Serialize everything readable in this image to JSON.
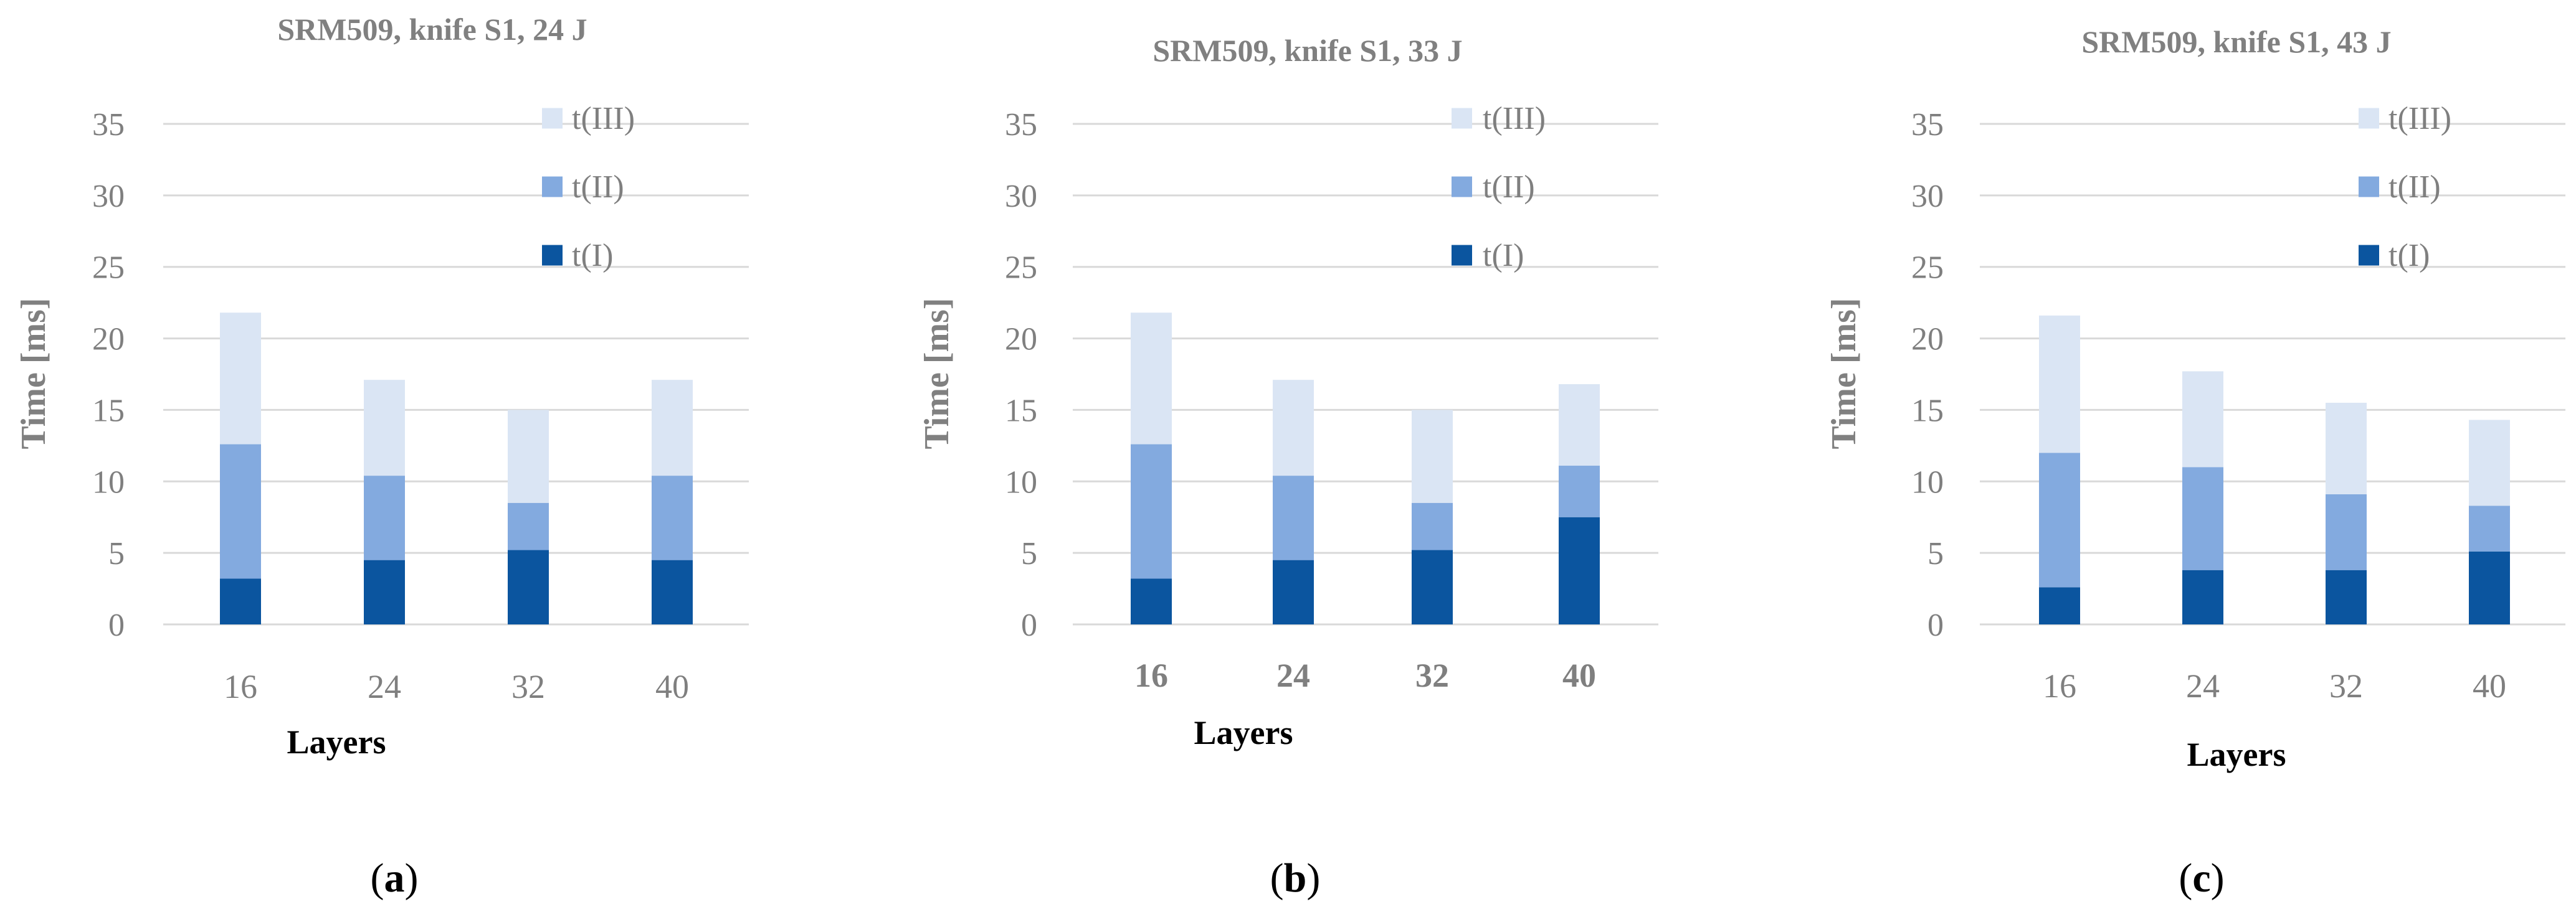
{
  "chart_data": [
    {
      "type": "bar",
      "stacked": true,
      "title": "SRM509, knife S1, 24 J",
      "ylabel": "Time [ms]",
      "xlabel": "Layers",
      "categories": [
        "16",
        "24",
        "32",
        "40"
      ],
      "ylim": [
        0,
        35
      ],
      "yticks": [
        0,
        5,
        10,
        15,
        20,
        25,
        30,
        35
      ],
      "grid": true,
      "legend_position": "top-right",
      "panel_label": "a",
      "series": [
        {
          "name": "t(I)",
          "values": [
            3.2,
            4.5,
            5.2,
            4.5
          ],
          "color": "#0b559f"
        },
        {
          "name": "t(II)",
          "values": [
            9.4,
            5.9,
            3.3,
            5.9
          ],
          "color": "#83aadf"
        },
        {
          "name": "t(III)",
          "values": [
            9.2,
            6.7,
            6.5,
            6.7
          ],
          "color": "#dae5f4"
        }
      ]
    },
    {
      "type": "bar",
      "stacked": true,
      "title": "SRM509, knife S1, 33 J",
      "ylabel": "Time [ms]",
      "xlabel": "Layers",
      "categories": [
        "16",
        "24",
        "32",
        "40"
      ],
      "ylim": [
        0,
        35
      ],
      "yticks": [
        0,
        5,
        10,
        15,
        20,
        25,
        30,
        35
      ],
      "grid": true,
      "legend_position": "top-right",
      "panel_label": "b",
      "series": [
        {
          "name": "t(I)",
          "values": [
            3.2,
            4.5,
            5.2,
            7.5
          ],
          "color": "#0b559f"
        },
        {
          "name": "t(II)",
          "values": [
            9.4,
            5.9,
            3.3,
            3.6
          ],
          "color": "#83aadf"
        },
        {
          "name": "t(III)",
          "values": [
            9.2,
            6.7,
            6.5,
            5.7
          ],
          "color": "#dae5f4"
        }
      ]
    },
    {
      "type": "bar",
      "stacked": true,
      "title": "SRM509, knife S1, 43 J",
      "ylabel": "Time [ms]",
      "xlabel": "Layers",
      "categories": [
        "16",
        "24",
        "32",
        "40"
      ],
      "ylim": [
        0,
        35
      ],
      "yticks": [
        0,
        5,
        10,
        15,
        20,
        25,
        30,
        35
      ],
      "grid": true,
      "legend_position": "top-right",
      "panel_label": "c",
      "series": [
        {
          "name": "t(I)",
          "values": [
            2.6,
            3.8,
            3.8,
            5.1
          ],
          "color": "#0b559f"
        },
        {
          "name": "t(II)",
          "values": [
            9.4,
            7.2,
            5.3,
            3.2
          ],
          "color": "#83aadf"
        },
        {
          "name": "t(III)",
          "values": [
            9.6,
            6.7,
            6.4,
            6.0
          ],
          "color": "#dae5f4"
        }
      ]
    }
  ]
}
